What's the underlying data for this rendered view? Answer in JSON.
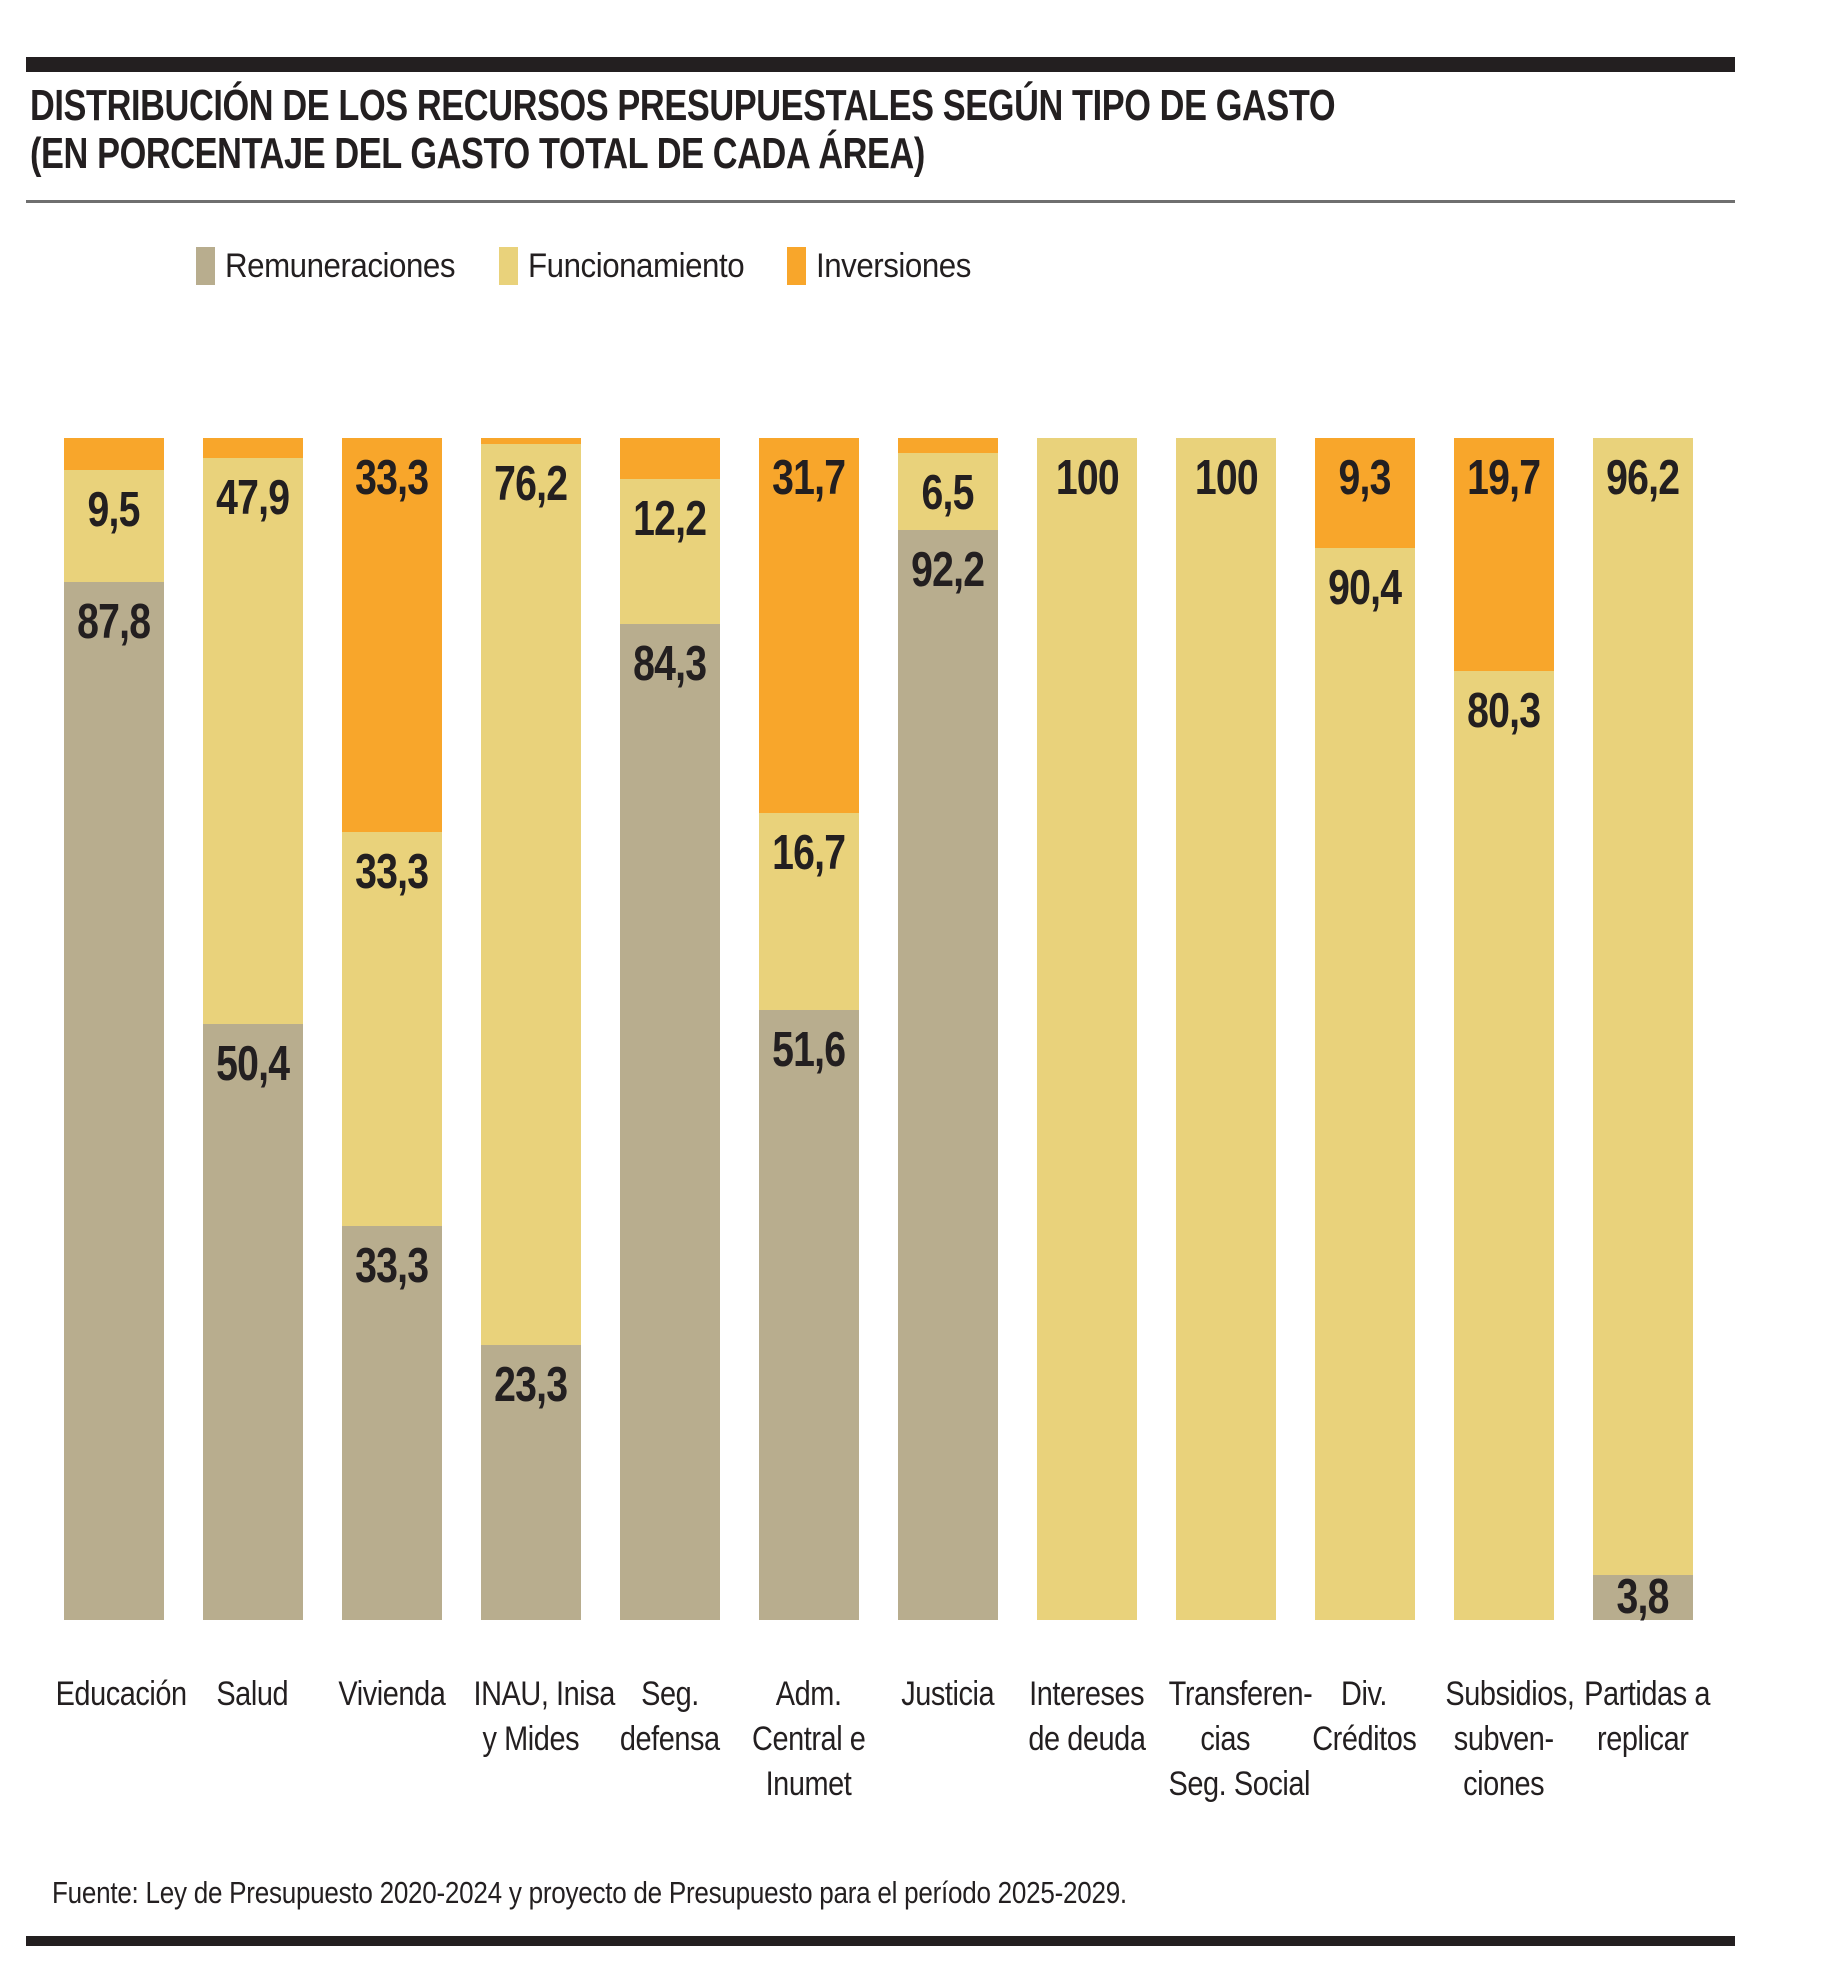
{
  "header": {
    "title_line1": "DISTRIBUCIÓN DE LOS RECURSOS PRESUPUESTALES SEGÚN TIPO DE GASTO",
    "title_line2": "(EN PORCENTAJE DEL GASTO TOTAL DE CADA ÁREA)"
  },
  "colors": {
    "ink": "#231f20",
    "rule_gray": "#6f6f6f",
    "background": "#ffffff",
    "remuneraciones": "#b8ad8e",
    "funcionamiento": "#e9d27b",
    "inversiones": "#f8a62b"
  },
  "legend": {
    "items": [
      {
        "key": "remuneraciones",
        "label": "Remuneraciones"
      },
      {
        "key": "funcionamiento",
        "label": "Funcionamiento"
      },
      {
        "key": "inversiones",
        "label": "Inversiones"
      }
    ]
  },
  "footer": {
    "source": "Fuente: Ley de Presupuesto 2020-2024 y proyecto de Presupuesto para el período 2025-2029."
  },
  "chart_data": {
    "type": "bar",
    "stacked": true,
    "value_unit": "percent of total spending of each area",
    "ylim": [
      0,
      100
    ],
    "grid": false,
    "legend_position": "top-left",
    "title": "Distribución de los recursos presupuestales según tipo de gasto (en porcentaje del gasto total de cada área)",
    "categories": [
      "Educación",
      "Salud",
      "Vivienda",
      "INAU, Inisa y Mides",
      "Seg. defensa",
      "Adm. Central e Inumet",
      "Justicia",
      "Intereses de deuda",
      "Transferencias Seg. Social",
      "Div. Créditos",
      "Subsidios, subvenciones",
      "Partidas a replicar"
    ],
    "series": [
      {
        "name": "Remuneraciones",
        "key": "remuneraciones",
        "values": [
          87.8,
          50.4,
          33.3,
          23.3,
          84.3,
          51.6,
          92.2,
          0,
          0,
          0,
          0,
          3.8
        ]
      },
      {
        "name": "Funcionamiento",
        "key": "funcionamiento",
        "values": [
          9.5,
          47.9,
          33.3,
          76.2,
          12.2,
          16.7,
          6.5,
          100,
          100,
          90.4,
          80.3,
          96.2
        ]
      },
      {
        "name": "Inversiones",
        "key": "inversiones",
        "values": [
          2.7,
          1.7,
          33.3,
          0.5,
          3.5,
          31.7,
          1.3,
          0,
          0,
          9.3,
          19.7,
          0
        ],
        "note": "values without printed labels in the graphic (2.7, 1.7, 0.5, 3.5, 1.3) are estimated as the remainder to 100"
      }
    ],
    "bars": [
      {
        "category": "Educación",
        "label_lines": [
          "Educación"
        ],
        "segments": [
          {
            "key": "inversiones",
            "value": 2.7,
            "label": ""
          },
          {
            "key": "funcionamiento",
            "value": 9.5,
            "label": "9,5"
          },
          {
            "key": "remuneraciones",
            "value": 87.8,
            "label": "87,8"
          }
        ]
      },
      {
        "category": "Salud",
        "label_lines": [
          "Salud"
        ],
        "segments": [
          {
            "key": "inversiones",
            "value": 1.7,
            "label": ""
          },
          {
            "key": "funcionamiento",
            "value": 47.9,
            "label": "47,9"
          },
          {
            "key": "remuneraciones",
            "value": 50.4,
            "label": "50,4"
          }
        ]
      },
      {
        "category": "Vivienda",
        "label_lines": [
          "Vivienda"
        ],
        "segments": [
          {
            "key": "inversiones",
            "value": 33.3,
            "label": "33,3"
          },
          {
            "key": "funcionamiento",
            "value": 33.3,
            "label": "33,3"
          },
          {
            "key": "remuneraciones",
            "value": 33.3,
            "label": "33,3"
          }
        ]
      },
      {
        "category": "INAU, Inisa y Mides",
        "label_lines": [
          "INAU, Inisa",
          "y Mides"
        ],
        "segments": [
          {
            "key": "inversiones",
            "value": 0.5,
            "label": ""
          },
          {
            "key": "funcionamiento",
            "value": 76.2,
            "label": "76,2"
          },
          {
            "key": "remuneraciones",
            "value": 23.3,
            "label": "23,3"
          }
        ]
      },
      {
        "category": "Seg. defensa",
        "label_lines": [
          "Seg.",
          "defensa"
        ],
        "segments": [
          {
            "key": "inversiones",
            "value": 3.5,
            "label": ""
          },
          {
            "key": "funcionamiento",
            "value": 12.2,
            "label": "12,2"
          },
          {
            "key": "remuneraciones",
            "value": 84.3,
            "label": "84,3"
          }
        ]
      },
      {
        "category": "Adm. Central e Inumet",
        "label_lines": [
          "Adm.",
          "Central e",
          "Inumet"
        ],
        "segments": [
          {
            "key": "inversiones",
            "value": 31.7,
            "label": "31,7"
          },
          {
            "key": "funcionamiento",
            "value": 16.7,
            "label": "16,7"
          },
          {
            "key": "remuneraciones",
            "value": 51.6,
            "label": "51,6"
          }
        ]
      },
      {
        "category": "Justicia",
        "label_lines": [
          "Justicia"
        ],
        "segments": [
          {
            "key": "inversiones",
            "value": 1.3,
            "label": ""
          },
          {
            "key": "funcionamiento",
            "value": 6.5,
            "label": "6,5"
          },
          {
            "key": "remuneraciones",
            "value": 92.2,
            "label": "92,2"
          }
        ]
      },
      {
        "category": "Intereses de deuda",
        "label_lines": [
          "Intereses",
          "de deuda"
        ],
        "segments": [
          {
            "key": "funcionamiento",
            "value": 100,
            "label": "100"
          }
        ]
      },
      {
        "category": "Transferencias Seg. Social",
        "label_lines": [
          "Transferen-",
          "cias",
          "Seg. Social"
        ],
        "segments": [
          {
            "key": "funcionamiento",
            "value": 100,
            "label": "100"
          }
        ]
      },
      {
        "category": "Div. Créditos",
        "label_lines": [
          "Div.",
          "Créditos"
        ],
        "segments": [
          {
            "key": "inversiones",
            "value": 9.3,
            "label": "9,3"
          },
          {
            "key": "funcionamiento",
            "value": 90.4,
            "label": "90,4"
          }
        ]
      },
      {
        "category": "Subsidios, subvenciones",
        "label_lines": [
          "Subsidios,",
          "subven-",
          "ciones"
        ],
        "segments": [
          {
            "key": "inversiones",
            "value": 19.7,
            "label": "19,7"
          },
          {
            "key": "funcionamiento",
            "value": 80.3,
            "label": "80,3"
          }
        ]
      },
      {
        "category": "Partidas a replicar",
        "label_lines": [
          "Partidas a",
          "replicar"
        ],
        "segments": [
          {
            "key": "funcionamiento",
            "value": 96.2,
            "label": "96,2"
          },
          {
            "key": "remuneraciones",
            "value": 3.8,
            "label": "3,8"
          }
        ]
      }
    ]
  }
}
